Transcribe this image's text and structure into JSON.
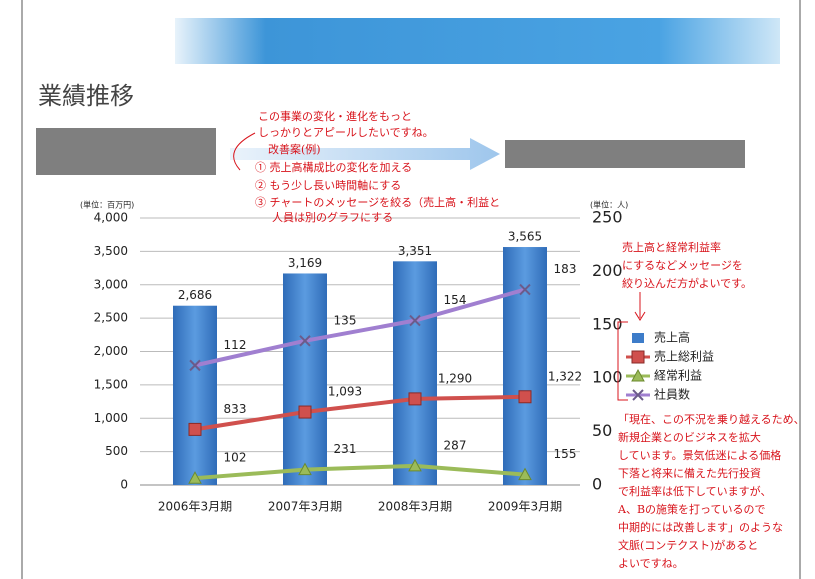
{
  "chart_data": {
    "type": "bar",
    "title": "業績推移",
    "y_label": "(単位：百万円)",
    "y2_label": "(単位：人)",
    "categories": [
      "2006年3月期",
      "2007年3月期",
      "2008年3月期",
      "2009年3月期"
    ],
    "series": [
      {
        "name": "売上高",
        "type": "bar",
        "color": "#3d7cc9",
        "values": [
          2686,
          3169,
          3351,
          3565
        ],
        "value_labels": [
          "2,686",
          "3,169",
          "3,351",
          "3,565"
        ]
      },
      {
        "name": "売上総利益",
        "type": "line",
        "marker": "square",
        "color": "#d0504d",
        "values": [
          833,
          1093,
          1290,
          1322
        ],
        "value_labels": [
          "833",
          "1,093",
          "1,290",
          "1,322"
        ]
      },
      {
        "name": "経常利益",
        "type": "line",
        "marker": "triangle",
        "color": "#9bbb59",
        "values": [
          102,
          231,
          287,
          155
        ]
      },
      {
        "name": "社員数",
        "type": "line",
        "marker": "x",
        "color": "#a07fd0",
        "axis": "y2",
        "values": [
          112,
          135,
          154,
          183
        ]
      }
    ],
    "ylim": [
      0,
      4000
    ],
    "yticks": [
      0,
      500,
      {
        "value": 1000,
        "label": "1,000"
      },
      {
        "value": 1500,
        "label": "1,500"
      },
      {
        "value": 2000,
        "label": "2,000"
      },
      {
        "value": 2500,
        "label": "2,500"
      },
      {
        "value": 3000,
        "label": "3,000"
      },
      {
        "value": 3500,
        "label": "3,500"
      },
      {
        "value": 4000,
        "label": "4,000"
      }
    ],
    "y2lim": [
      0,
      250
    ],
    "y2ticks": [
      0,
      50,
      100,
      150,
      200,
      250
    ],
    "grid": true,
    "legend": "right",
    "annotations": [
      "この事業の変化・進化をもっと",
      "しっかりとアピールしたいですね。",
      "改善案(例)",
      "① 売上高構成比の変化を加える",
      "② もう少し長い時間軸にする",
      "③ チャートのメッセージを絞る（売上高・利益と",
      "人員は別のグラフにする",
      "売上高と経常利益率",
      "にするなどメッセージを",
      "絞り込んだ方がよいです。",
      "「現在、この不況を乗り越えるため、",
      "新規企業とのビジネスを拡大",
      "しています。景気低迷による価格",
      "下落と将来に備えた先行投資",
      "で利益率は低下していますが、",
      "A、Bの施策を打っているので",
      "中期的には改善します」のような",
      "文脈(コンテクスト)があると",
      "よいですね。"
    ]
  }
}
